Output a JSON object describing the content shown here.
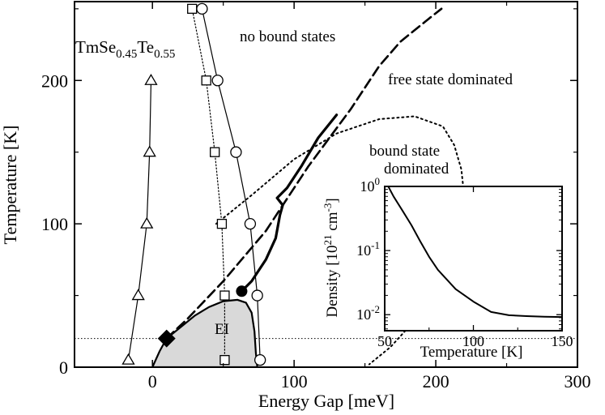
{
  "chart_data": {
    "type": "line",
    "xlabel": "Energy Gap [meV]",
    "ylabel": "Temperature [K]",
    "xlim": [
      -55,
      300
    ],
    "ylim": [
      0,
      255
    ],
    "xticks": [
      0,
      100,
      200,
      300
    ],
    "yticks": [
      0,
      100,
      200
    ],
    "xtick_labels": [
      "0",
      "100",
      "200",
      "300"
    ],
    "ytick_labels": [
      "0",
      "100",
      "200"
    ],
    "material_label": {
      "base": "TmSe",
      "sub1": "0.45",
      "mid": "Te",
      "sub2": "0.55"
    },
    "region_labels": {
      "no_bound": "no bound states",
      "free": "free state dominated",
      "bound_line1": "bound state",
      "bound_line2": "dominated",
      "ei": "EI"
    },
    "reference_temperature": 20,
    "series": [
      {
        "style": "solid-thin-triangles",
        "points": [
          [
            -17,
            5
          ],
          [
            -10,
            50
          ],
          [
            -4,
            100
          ],
          [
            -2,
            150
          ],
          [
            -1,
            200
          ]
        ]
      },
      {
        "style": "solid-thin-circles",
        "points": [
          [
            76,
            5
          ],
          [
            74,
            50
          ],
          [
            69,
            100
          ],
          [
            59,
            150
          ],
          [
            46,
            200
          ],
          [
            35,
            250
          ]
        ]
      },
      {
        "style": "dotted-squares",
        "points": [
          [
            51,
            5
          ],
          [
            51,
            50
          ],
          [
            49,
            100
          ],
          [
            44,
            150
          ],
          [
            38,
            200
          ],
          [
            28,
            250
          ]
        ]
      },
      {
        "style": "dashed-thick",
        "points": [
          [
            10,
            20
          ],
          [
            25,
            34
          ],
          [
            50,
            60
          ],
          [
            80,
            95
          ],
          [
            110,
            140
          ],
          [
            140,
            180
          ],
          [
            160,
            210
          ],
          [
            175,
            227
          ],
          [
            195,
            243
          ],
          [
            204,
            250
          ]
        ]
      },
      {
        "style": "solid-thick",
        "points": [
          [
            63,
            53
          ],
          [
            70,
            60
          ],
          [
            80,
            75
          ],
          [
            87,
            90
          ],
          [
            90,
            106
          ],
          [
            92,
            113
          ],
          [
            88,
            118
          ],
          [
            95,
            125
          ],
          [
            105,
            140
          ],
          [
            117,
            160
          ],
          [
            130,
            176
          ]
        ]
      },
      {
        "style": "dotted-dome",
        "points": [
          [
            45,
            100
          ],
          [
            70,
            120
          ],
          [
            100,
            145
          ],
          [
            130,
            163
          ],
          [
            160,
            173
          ],
          [
            185,
            175
          ],
          [
            205,
            168
          ],
          [
            213,
            155
          ],
          [
            218,
            138
          ],
          [
            220,
            120
          ],
          [
            218,
            100
          ],
          [
            214,
            80
          ],
          [
            205,
            60
          ],
          [
            193,
            42
          ],
          [
            180,
            27
          ],
          [
            168,
            14
          ],
          [
            153,
            2
          ]
        ]
      }
    ],
    "ei_region": {
      "label": "EI",
      "boundary": [
        [
          0,
          0
        ],
        [
          5,
          11
        ],
        [
          10,
          20
        ],
        [
          20,
          28
        ],
        [
          30,
          36
        ],
        [
          40,
          42
        ],
        [
          50,
          46
        ],
        [
          60,
          47
        ],
        [
          66,
          45
        ],
        [
          70,
          38
        ],
        [
          72,
          25
        ],
        [
          73,
          10
        ],
        [
          74,
          0
        ]
      ]
    },
    "markers": [
      {
        "kind": "filled-diamond",
        "x": 10,
        "y": 20
      },
      {
        "kind": "filled-circle",
        "x": 63,
        "y": 53
      }
    ],
    "inset": {
      "type": "line",
      "xlabel": "Temperature [K]",
      "ylabel_main": "Density [10",
      "ylabel_sup1": "21",
      "ylabel_mid": " cm",
      "ylabel_sup2": "-3",
      "ylabel_end": "]",
      "xlim": [
        50,
        150
      ],
      "ylim_log10": [
        -2.25,
        0
      ],
      "xtick_labels": [
        "50",
        "100",
        "150"
      ],
      "xticks": [
        50,
        100,
        150
      ],
      "ytick_base": "10",
      "ytick_exps": [
        "0",
        "-1",
        "-2"
      ],
      "ytick_values_log10": [
        0,
        -1,
        -2
      ],
      "points": [
        [
          52,
          1.0
        ],
        [
          55,
          0.7
        ],
        [
          60,
          0.42
        ],
        [
          65,
          0.25
        ],
        [
          70,
          0.14
        ],
        [
          75,
          0.08
        ],
        [
          80,
          0.05
        ],
        [
          90,
          0.025
        ],
        [
          100,
          0.016
        ],
        [
          110,
          0.011
        ],
        [
          120,
          0.0098
        ],
        [
          130,
          0.0095
        ],
        [
          140,
          0.0093
        ],
        [
          150,
          0.0092
        ]
      ]
    }
  }
}
